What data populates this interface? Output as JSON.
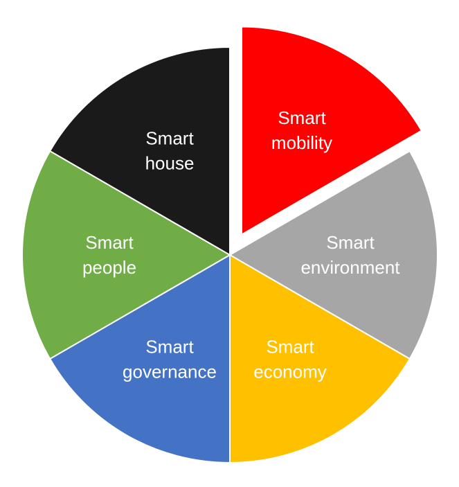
{
  "chart_data": {
    "type": "pie",
    "title": "",
    "exploded": "Smart mobility",
    "slices": [
      {
        "label_line1": "Smart",
        "label_line2": "mobility",
        "value": 1,
        "color": "#ff0000"
      },
      {
        "label_line1": "Smart",
        "label_line2": "environment",
        "value": 1,
        "color": "#a6a6a6"
      },
      {
        "label_line1": "Smart",
        "label_line2": "economy",
        "value": 1,
        "color": "#ffc000"
      },
      {
        "label_line1": "Smart",
        "label_line2": "governance",
        "value": 1,
        "color": "#4472c4"
      },
      {
        "label_line1": "Smart",
        "label_line2": "people",
        "value": 1,
        "color": "#70ad47"
      },
      {
        "label_line1": "Smart",
        "label_line2": "house",
        "value": 1,
        "color": "#1a1a1a"
      }
    ],
    "slice_border_color": "#ffffff"
  }
}
